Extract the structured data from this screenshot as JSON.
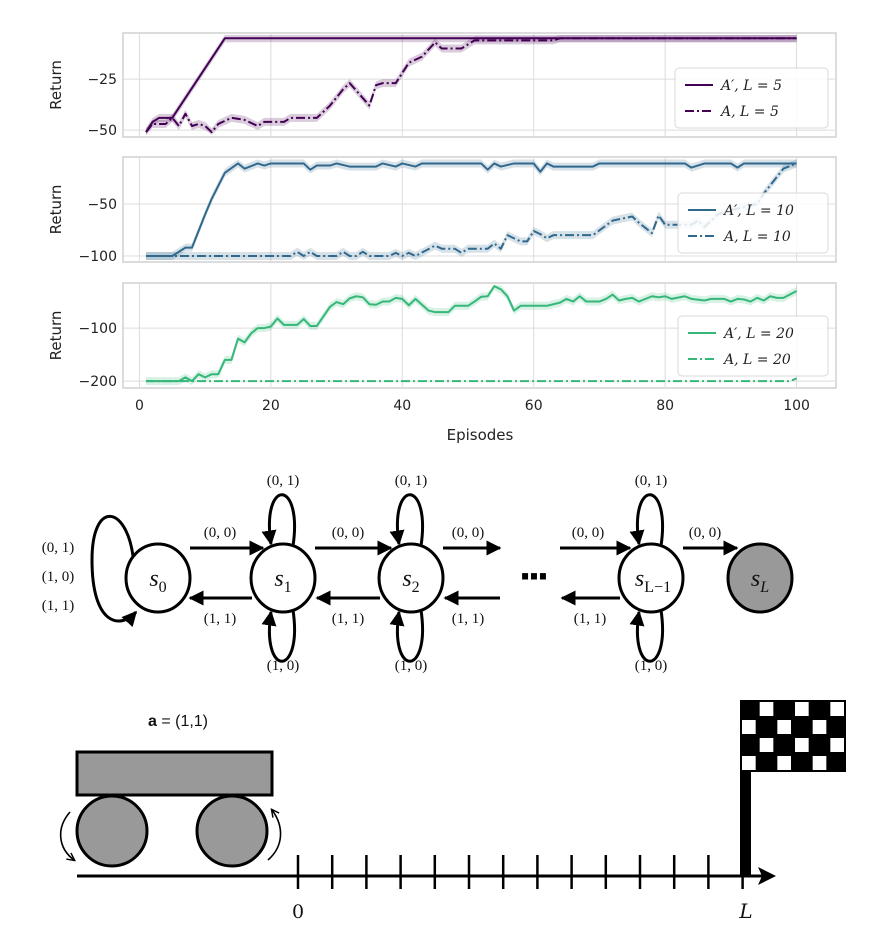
{
  "chart_data": [
    {
      "type": "line",
      "xlabel": "",
      "ylabel": "Return",
      "xlim": [
        -2.5,
        106
      ],
      "ylim": [
        -53.4,
        -2.4
      ],
      "xticks": [
        0,
        20,
        40,
        60,
        80,
        100
      ],
      "yticks": [
        -50,
        -25
      ],
      "ytick_labels": [
        "−50",
        "−25"
      ],
      "grid": true,
      "legend": "right",
      "color": "#440154",
      "series": [
        {
          "name": "A′, L = 5",
          "style": "solid",
          "points": [
            [
              1,
              -51
            ],
            [
              2,
              -46
            ],
            [
              3,
              -44
            ],
            [
              5,
              -44
            ],
            [
              13,
              -5
            ],
            [
              100,
              -5
            ]
          ]
        },
        {
          "name": "A, L = 5",
          "style": "dashdot",
          "points": [
            [
              1,
              -51
            ],
            [
              2,
              -47
            ],
            [
              4,
              -47
            ],
            [
              5,
              -44
            ],
            [
              6,
              -48
            ],
            [
              7,
              -42
            ],
            [
              8,
              -48
            ],
            [
              9,
              -47
            ],
            [
              10,
              -48
            ],
            [
              11,
              -51
            ],
            [
              12,
              -47
            ],
            [
              14,
              -44
            ],
            [
              16,
              -45
            ],
            [
              18,
              -48
            ],
            [
              19,
              -46
            ],
            [
              22,
              -46
            ],
            [
              23,
              -44
            ],
            [
              27,
              -44
            ],
            [
              29,
              -38
            ],
            [
              31,
              -30
            ],
            [
              32,
              -27
            ],
            [
              35,
              -38
            ],
            [
              36,
              -28
            ],
            [
              37,
              -27
            ],
            [
              39,
              -27
            ],
            [
              41,
              -17
            ],
            [
              43,
              -14
            ],
            [
              45,
              -7
            ],
            [
              46,
              -10
            ],
            [
              49,
              -10
            ],
            [
              51,
              -6
            ],
            [
              63,
              -6
            ],
            [
              64,
              -5
            ],
            [
              100,
              -5
            ]
          ]
        }
      ]
    },
    {
      "type": "line",
      "xlabel": "",
      "ylabel": "Return",
      "xlim": [
        -2.5,
        106
      ],
      "ylim": [
        -105.8,
        -4.8
      ],
      "xticks": [
        0,
        20,
        40,
        60,
        80,
        100
      ],
      "yticks": [
        -100,
        -50
      ],
      "ytick_labels": [
        "−100",
        "−50"
      ],
      "grid": true,
      "legend": "right",
      "color": "#31688e",
      "series": [
        {
          "name": "A′, L = 10",
          "style": "solid",
          "points": [
            [
              1,
              -100
            ],
            [
              5,
              -100
            ],
            [
              7,
              -92
            ],
            [
              8,
              -92
            ],
            [
              10,
              -60
            ],
            [
              11,
              -45
            ],
            [
              13,
              -20
            ],
            [
              15,
              -11
            ],
            [
              16,
              -16
            ],
            [
              18,
              -11
            ],
            [
              19,
              -13
            ],
            [
              20,
              -11
            ],
            [
              25,
              -11
            ],
            [
              26,
              -17
            ],
            [
              27,
              -13
            ],
            [
              29,
              -13
            ],
            [
              30,
              -11
            ],
            [
              32,
              -14
            ],
            [
              36,
              -14
            ],
            [
              37,
              -11
            ],
            [
              39,
              -14
            ],
            [
              40,
              -11
            ],
            [
              42,
              -14
            ],
            [
              43,
              -11
            ],
            [
              52,
              -11
            ],
            [
              53,
              -17
            ],
            [
              54,
              -11
            ],
            [
              55,
              -14
            ],
            [
              57,
              -11
            ],
            [
              60,
              -11
            ],
            [
              61,
              -19
            ],
            [
              62,
              -11
            ],
            [
              63,
              -14
            ],
            [
              69,
              -14
            ],
            [
              70,
              -11
            ],
            [
              83,
              -11
            ],
            [
              84,
              -15
            ],
            [
              86,
              -11
            ],
            [
              90,
              -11
            ],
            [
              91,
              -15
            ],
            [
              92,
              -11
            ],
            [
              100,
              -11
            ]
          ]
        },
        {
          "name": "A, L = 10",
          "style": "dashdot",
          "points": [
            [
              1,
              -100
            ],
            [
              23,
              -100
            ],
            [
              24,
              -96
            ],
            [
              25,
              -100
            ],
            [
              26,
              -96
            ],
            [
              27,
              -100
            ],
            [
              30,
              -100
            ],
            [
              31,
              -96
            ],
            [
              32,
              -100
            ],
            [
              33,
              -100
            ],
            [
              34,
              -96
            ],
            [
              35,
              -100
            ],
            [
              38,
              -100
            ],
            [
              39,
              -97
            ],
            [
              40,
              -100
            ],
            [
              41,
              -97
            ],
            [
              42,
              -100
            ],
            [
              45,
              -90
            ],
            [
              46,
              -93
            ],
            [
              48,
              -93
            ],
            [
              49,
              -97
            ],
            [
              50,
              -93
            ],
            [
              53,
              -93
            ],
            [
              54,
              -88
            ],
            [
              55,
              -93
            ],
            [
              56,
              -80
            ],
            [
              58,
              -86
            ],
            [
              59,
              -86
            ],
            [
              60,
              -76
            ],
            [
              61,
              -79
            ],
            [
              62,
              -83
            ],
            [
              63,
              -80
            ],
            [
              69,
              -80
            ],
            [
              72,
              -66
            ],
            [
              75,
              -62
            ],
            [
              76,
              -68
            ],
            [
              78,
              -78
            ],
            [
              79,
              -61
            ],
            [
              80,
              -70
            ],
            [
              84,
              -70
            ],
            [
              85,
              -66
            ],
            [
              86,
              -72
            ],
            [
              88,
              -60
            ],
            [
              90,
              -56
            ],
            [
              92,
              -53
            ],
            [
              94,
              -50
            ],
            [
              95,
              -40
            ],
            [
              96,
              -32
            ],
            [
              98,
              -16
            ],
            [
              100,
              -11
            ]
          ]
        }
      ]
    },
    {
      "type": "line",
      "xlabel": "Episodes",
      "ylabel": "Return",
      "xlim": [
        -2.5,
        106
      ],
      "ylim": [
        -213,
        -15
      ],
      "xticks": [
        0,
        20,
        40,
        60,
        80,
        100
      ],
      "xtick_labels": [
        "0",
        "20",
        "40",
        "60",
        "80",
        "100"
      ],
      "yticks": [
        -200,
        -100
      ],
      "ytick_labels": [
        "−200",
        "−100"
      ],
      "grid": true,
      "legend": "right",
      "color": "#35b779",
      "series": [
        {
          "name": "A′, L = 20",
          "style": "solid",
          "points": [
            [
              1,
              -200
            ],
            [
              6,
              -200
            ],
            [
              7,
              -193
            ],
            [
              8,
              -200
            ],
            [
              9,
              -187
            ],
            [
              10,
              -193
            ],
            [
              11,
              -187
            ],
            [
              12,
              -187
            ],
            [
              13,
              -160
            ],
            [
              14,
              -160
            ],
            [
              15,
              -120
            ],
            [
              16,
              -127
            ],
            [
              17,
              -110
            ],
            [
              18,
              -100
            ],
            [
              19,
              -100
            ],
            [
              20,
              -97
            ],
            [
              21,
              -82
            ],
            [
              22,
              -94
            ],
            [
              24,
              -94
            ],
            [
              25,
              -83
            ],
            [
              26,
              -96
            ],
            [
              27,
              -96
            ],
            [
              29,
              -60
            ],
            [
              30,
              -51
            ],
            [
              31,
              -55
            ],
            [
              32,
              -44
            ],
            [
              33,
              -40
            ],
            [
              34,
              -42
            ],
            [
              35,
              -55
            ],
            [
              36,
              -56
            ],
            [
              37,
              -50
            ],
            [
              38,
              -50
            ],
            [
              39,
              -43
            ],
            [
              40,
              -45
            ],
            [
              41,
              -57
            ],
            [
              42,
              -45
            ],
            [
              44,
              -67
            ],
            [
              45,
              -70
            ],
            [
              47,
              -70
            ],
            [
              48,
              -58
            ],
            [
              50,
              -58
            ],
            [
              51,
              -50
            ],
            [
              52,
              -41
            ],
            [
              53,
              -40
            ],
            [
              54,
              -21
            ],
            [
              55,
              -27
            ],
            [
              56,
              -40
            ],
            [
              57,
              -67
            ],
            [
              58,
              -58
            ],
            [
              62,
              -58
            ],
            [
              64,
              -52
            ],
            [
              65,
              -45
            ],
            [
              66,
              -50
            ],
            [
              67,
              -40
            ],
            [
              68,
              -50
            ],
            [
              70,
              -50
            ],
            [
              71,
              -45
            ],
            [
              72,
              -37
            ],
            [
              73,
              -48
            ],
            [
              74,
              -45
            ],
            [
              75,
              -43
            ],
            [
              76,
              -50
            ],
            [
              78,
              -40
            ],
            [
              79,
              -42
            ],
            [
              80,
              -40
            ],
            [
              81,
              -45
            ],
            [
              83,
              -40
            ],
            [
              84,
              -45
            ],
            [
              86,
              -48
            ],
            [
              87,
              -45
            ],
            [
              89,
              -45
            ],
            [
              90,
              -50
            ],
            [
              91,
              -45
            ],
            [
              92,
              -46
            ],
            [
              93,
              -50
            ],
            [
              94,
              -43
            ],
            [
              95,
              -48
            ],
            [
              96,
              -40
            ],
            [
              97,
              -43
            ],
            [
              98,
              -43
            ],
            [
              100,
              -30
            ]
          ]
        },
        {
          "name": "A, L = 20",
          "style": "dashdot",
          "points": [
            [
              1,
              -200
            ],
            [
              99,
              -200
            ],
            [
              100,
              -195
            ]
          ]
        }
      ]
    }
  ],
  "diagram": {
    "nodes": [
      {
        "name": "s",
        "sub": "0",
        "terminal": false
      },
      {
        "name": "s",
        "sub": "1",
        "terminal": false
      },
      {
        "name": "s",
        "sub": "2",
        "terminal": false
      },
      {
        "name": "s",
        "sub": "L−1",
        "terminal": false
      },
      {
        "name": "s",
        "sub": "L",
        "terminal": true
      }
    ],
    "ellipsis": "···",
    "forward_label": "(0, 0)",
    "backward_label": "(1, 1)",
    "loop_top_label": "(0, 1)",
    "loop_bottom_label": "(1, 0)",
    "s0_loop_labels": [
      "(0, 1)",
      "(1, 0)",
      "(1, 1)"
    ],
    "terminal_color": "#999999"
  },
  "track": {
    "action_prefix": "a",
    "action_value": " = (1,1)",
    "start_label": "0",
    "end_label": "L",
    "car_color": "#999999"
  }
}
